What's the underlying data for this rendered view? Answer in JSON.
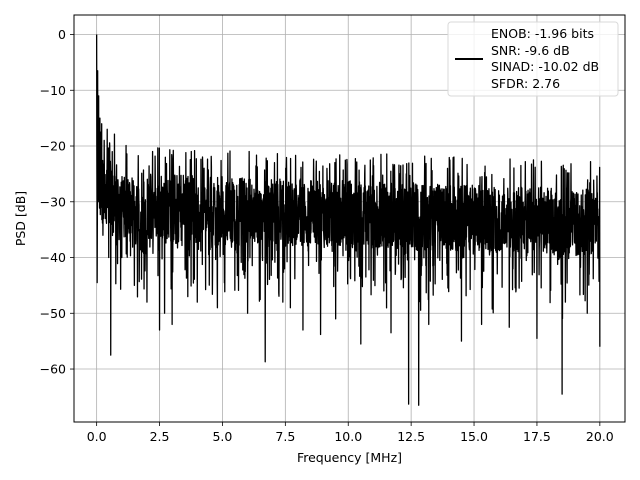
{
  "chart_data": {
    "type": "line",
    "xlabel": "Frequency [MHz]",
    "ylabel": "PSD [dB]",
    "xlim": [
      -0.9,
      21.0
    ],
    "ylim": [
      -69.5,
      3.5
    ],
    "x_ticks": [
      0.0,
      2.5,
      5.0,
      7.5,
      10.0,
      12.5,
      15.0,
      17.5,
      20.0
    ],
    "x_tick_labels": [
      "0.0",
      "2.5",
      "5.0",
      "7.5",
      "10.0",
      "12.5",
      "15.0",
      "17.5",
      "20.0"
    ],
    "y_ticks": [
      0,
      -10,
      -20,
      -30,
      -40,
      -50,
      -60
    ],
    "y_tick_labels": [
      "0",
      "−10",
      "−20",
      "−30",
      "−40",
      "−50",
      "−60"
    ],
    "grid": true,
    "legend_position": "top-right",
    "series": [
      {
        "legend_lines": [
          "ENOB: -1.96 bits",
          "SNR: -9.6 dB",
          "SINAD: -10.02 dB",
          "SFDR: 2.76"
        ],
        "color": "#000000",
        "x_range": [
          0.0,
          20.0
        ],
        "points": [
          [
            0.0,
            0.0
          ],
          [
            0.02,
            -44.5
          ],
          [
            0.04,
            -6.5
          ],
          [
            0.06,
            -30.0
          ],
          [
            0.08,
            -11.0
          ],
          [
            0.1,
            -27.0
          ],
          [
            0.13,
            -15.0
          ],
          [
            0.16,
            -31.0
          ],
          [
            0.2,
            -16.0
          ],
          [
            0.25,
            -36.0
          ],
          [
            0.3,
            -19.0
          ],
          [
            0.35,
            -33.0
          ],
          [
            0.42,
            -17.0
          ],
          [
            0.48,
            -40.0
          ],
          [
            0.52,
            -20.0
          ],
          [
            0.56,
            -57.5
          ],
          [
            0.62,
            -21.0
          ],
          [
            1.0,
            -40.0
          ],
          [
            1.5,
            -45.0
          ],
          [
            2.0,
            -48.0
          ],
          [
            2.5,
            -53.0
          ],
          [
            2.7,
            -50.0
          ],
          [
            3.0,
            -52.0
          ],
          [
            4.0,
            -48.0
          ],
          [
            4.8,
            -49.0
          ],
          [
            6.0,
            -50.0
          ],
          [
            6.7,
            -58.7
          ],
          [
            7.4,
            -48.0
          ],
          [
            7.7,
            -49.0
          ],
          [
            8.2,
            -53.0
          ],
          [
            8.9,
            -53.8
          ],
          [
            9.5,
            -51.0
          ],
          [
            10.5,
            -55.5
          ],
          [
            11.7,
            -53.5
          ],
          [
            12.4,
            -66.3
          ],
          [
            12.8,
            -66.5
          ],
          [
            13.2,
            -52.0
          ],
          [
            14.5,
            -55.0
          ],
          [
            15.3,
            -52.0
          ],
          [
            16.4,
            -52.5
          ],
          [
            17.5,
            -54.5
          ],
          [
            18.5,
            -64.5
          ],
          [
            19.5,
            -50.0
          ],
          [
            20.0,
            -56.0
          ]
        ]
      }
    ]
  }
}
